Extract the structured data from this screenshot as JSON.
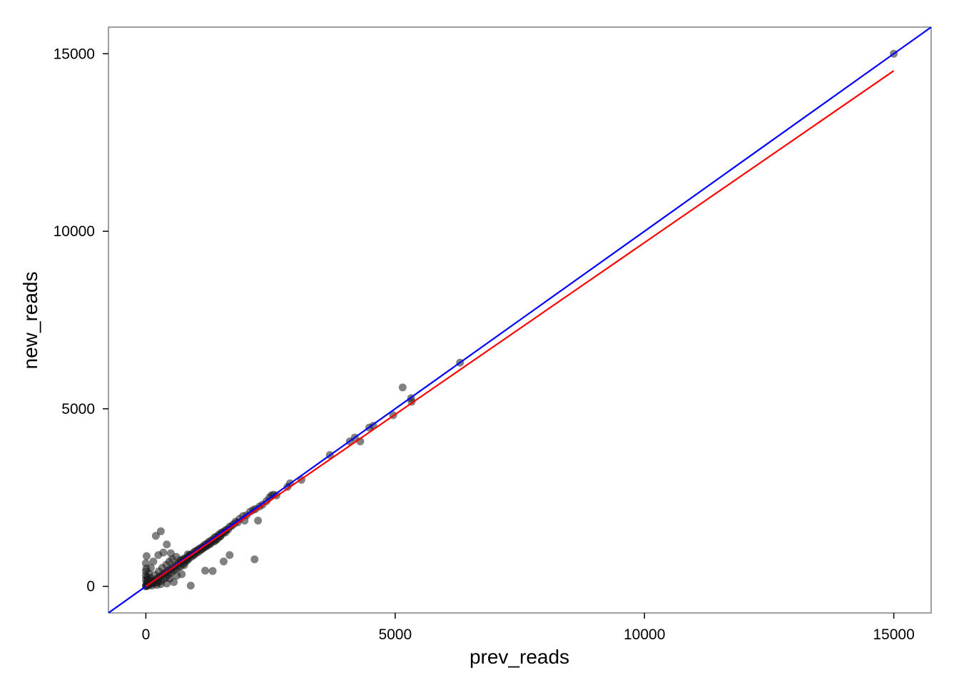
{
  "chart_data": {
    "type": "scatter",
    "title": "",
    "xlabel": "prev_reads",
    "ylabel": "new_reads",
    "xlim": [
      -750,
      15750
    ],
    "ylim": [
      -750,
      15750
    ],
    "xticks": [
      0,
      5000,
      10000,
      15000
    ],
    "yticks": [
      0,
      5000,
      10000,
      15000
    ],
    "grid": false,
    "legend": "none",
    "colors": {
      "points": "#1a1a1a",
      "identity_line": "#0000ff",
      "fit_line": "#ff0000",
      "panel_border": "#7f7f7f"
    },
    "reference_lines": [
      {
        "kind": "identity",
        "color": "#0000ff",
        "intercept": 0,
        "slope": 1
      },
      {
        "kind": "fit",
        "color": "#ff0000",
        "x": [
          0,
          15000
        ],
        "y": [
          0,
          14520
        ]
      }
    ],
    "points": [
      [
        15000,
        15000
      ],
      [
        6300,
        6300
      ],
      [
        5150,
        5600
      ],
      [
        5320,
        5300
      ],
      [
        5330,
        5200
      ],
      [
        4960,
        4820
      ],
      [
        4560,
        4520
      ],
      [
        4480,
        4470
      ],
      [
        4300,
        4080
      ],
      [
        4190,
        4190
      ],
      [
        4090,
        4080
      ],
      [
        3690,
        3700
      ],
      [
        3120,
        3000
      ],
      [
        2890,
        2900
      ],
      [
        2840,
        2800
      ],
      [
        2620,
        2560
      ],
      [
        2560,
        2580
      ],
      [
        2520,
        2560
      ],
      [
        2480,
        2500
      ],
      [
        2420,
        2400
      ],
      [
        2340,
        2300
      ],
      [
        2280,
        2250
      ],
      [
        2250,
        1850
      ],
      [
        2200,
        2180
      ],
      [
        2180,
        760
      ],
      [
        2150,
        2150
      ],
      [
        2090,
        2100
      ],
      [
        2020,
        2000
      ],
      [
        1980,
        1850
      ],
      [
        1950,
        1980
      ],
      [
        1880,
        1900
      ],
      [
        1840,
        1800
      ],
      [
        1800,
        1820
      ],
      [
        1760,
        1750
      ],
      [
        1720,
        1700
      ],
      [
        1680,
        1680
      ],
      [
        1620,
        1600
      ],
      [
        1580,
        1560
      ],
      [
        1540,
        1520
      ],
      [
        1500,
        1500
      ],
      [
        1460,
        1450
      ],
      [
        1420,
        1400
      ],
      [
        1380,
        1380
      ],
      [
        1340,
        1320
      ],
      [
        1300,
        1280
      ],
      [
        1260,
        1250
      ],
      [
        1220,
        1200
      ],
      [
        1180,
        1170
      ],
      [
        1140,
        1120
      ],
      [
        1100,
        1080
      ],
      [
        1060,
        1050
      ],
      [
        1020,
        1000
      ],
      [
        980,
        980
      ],
      [
        940,
        930
      ],
      [
        900,
        880
      ],
      [
        860,
        850
      ],
      [
        820,
        800
      ],
      [
        780,
        770
      ],
      [
        740,
        730
      ],
      [
        700,
        690
      ],
      [
        660,
        650
      ],
      [
        620,
        610
      ],
      [
        580,
        570
      ],
      [
        540,
        530
      ],
      [
        500,
        490
      ],
      [
        460,
        450
      ],
      [
        420,
        410
      ],
      [
        380,
        370
      ],
      [
        340,
        330
      ],
      [
        300,
        290
      ],
      [
        260,
        250
      ],
      [
        220,
        210
      ],
      [
        180,
        170
      ],
      [
        140,
        130
      ],
      [
        100,
        90
      ],
      [
        60,
        50
      ],
      [
        30,
        20
      ],
      [
        10,
        5
      ],
      [
        0,
        0
      ],
      [
        5,
        40
      ],
      [
        20,
        120
      ],
      [
        40,
        200
      ],
      [
        0,
        300
      ],
      [
        10,
        500
      ],
      [
        15,
        850
      ],
      [
        0,
        650
      ],
      [
        0,
        420
      ],
      [
        0,
        180
      ],
      [
        50,
        30
      ],
      [
        80,
        60
      ],
      [
        120,
        20
      ],
      [
        150,
        80
      ],
      [
        200,
        100
      ],
      [
        250,
        120
      ],
      [
        300,
        150
      ],
      [
        350,
        200
      ],
      [
        400,
        250
      ],
      [
        450,
        320
      ],
      [
        500,
        380
      ],
      [
        550,
        440
      ],
      [
        600,
        480
      ],
      [
        650,
        530
      ],
      [
        700,
        560
      ],
      [
        750,
        640
      ],
      [
        800,
        700
      ],
      [
        850,
        760
      ],
      [
        900,
        820
      ],
      [
        950,
        860
      ],
      [
        1000,
        920
      ],
      [
        1050,
        960
      ],
      [
        1100,
        1020
      ],
      [
        1150,
        1070
      ],
      [
        1200,
        1120
      ],
      [
        1250,
        1180
      ],
      [
        1300,
        1220
      ],
      [
        1350,
        1280
      ],
      [
        1400,
        1300
      ],
      [
        1450,
        1380
      ],
      [
        1500,
        1420
      ],
      [
        1550,
        1490
      ],
      [
        1600,
        1520
      ],
      [
        1650,
        1600
      ],
      [
        300,
        1550
      ],
      [
        200,
        1420
      ],
      [
        420,
        1180
      ],
      [
        500,
        930
      ],
      [
        250,
        880
      ],
      [
        350,
        950
      ],
      [
        150,
        700
      ],
      [
        100,
        520
      ],
      [
        900,
        20
      ],
      [
        1190,
        440
      ],
      [
        1340,
        430
      ],
      [
        1560,
        700
      ],
      [
        1680,
        880
      ],
      [
        840,
        900
      ],
      [
        770,
        600
      ],
      [
        720,
        340
      ],
      [
        620,
        300
      ],
      [
        480,
        220
      ],
      [
        560,
        120
      ],
      [
        420,
        80
      ],
      [
        300,
        60
      ],
      [
        220,
        40
      ],
      [
        130,
        150
      ],
      [
        90,
        240
      ],
      [
        60,
        360
      ],
      [
        30,
        80
      ],
      [
        25,
        260
      ],
      [
        75,
        170
      ],
      [
        180,
        320
      ],
      [
        260,
        420
      ],
      [
        330,
        520
      ],
      [
        410,
        610
      ],
      [
        470,
        700
      ],
      [
        530,
        760
      ],
      [
        610,
        830
      ],
      [
        690,
        740
      ],
      [
        760,
        780
      ],
      [
        830,
        740
      ],
      [
        880,
        880
      ],
      [
        960,
        900
      ],
      [
        1030,
        990
      ],
      [
        1110,
        1040
      ],
      [
        1170,
        1100
      ],
      [
        1230,
        1140
      ],
      [
        1290,
        1190
      ],
      [
        1370,
        1260
      ],
      [
        1430,
        1330
      ],
      [
        1490,
        1400
      ]
    ]
  }
}
